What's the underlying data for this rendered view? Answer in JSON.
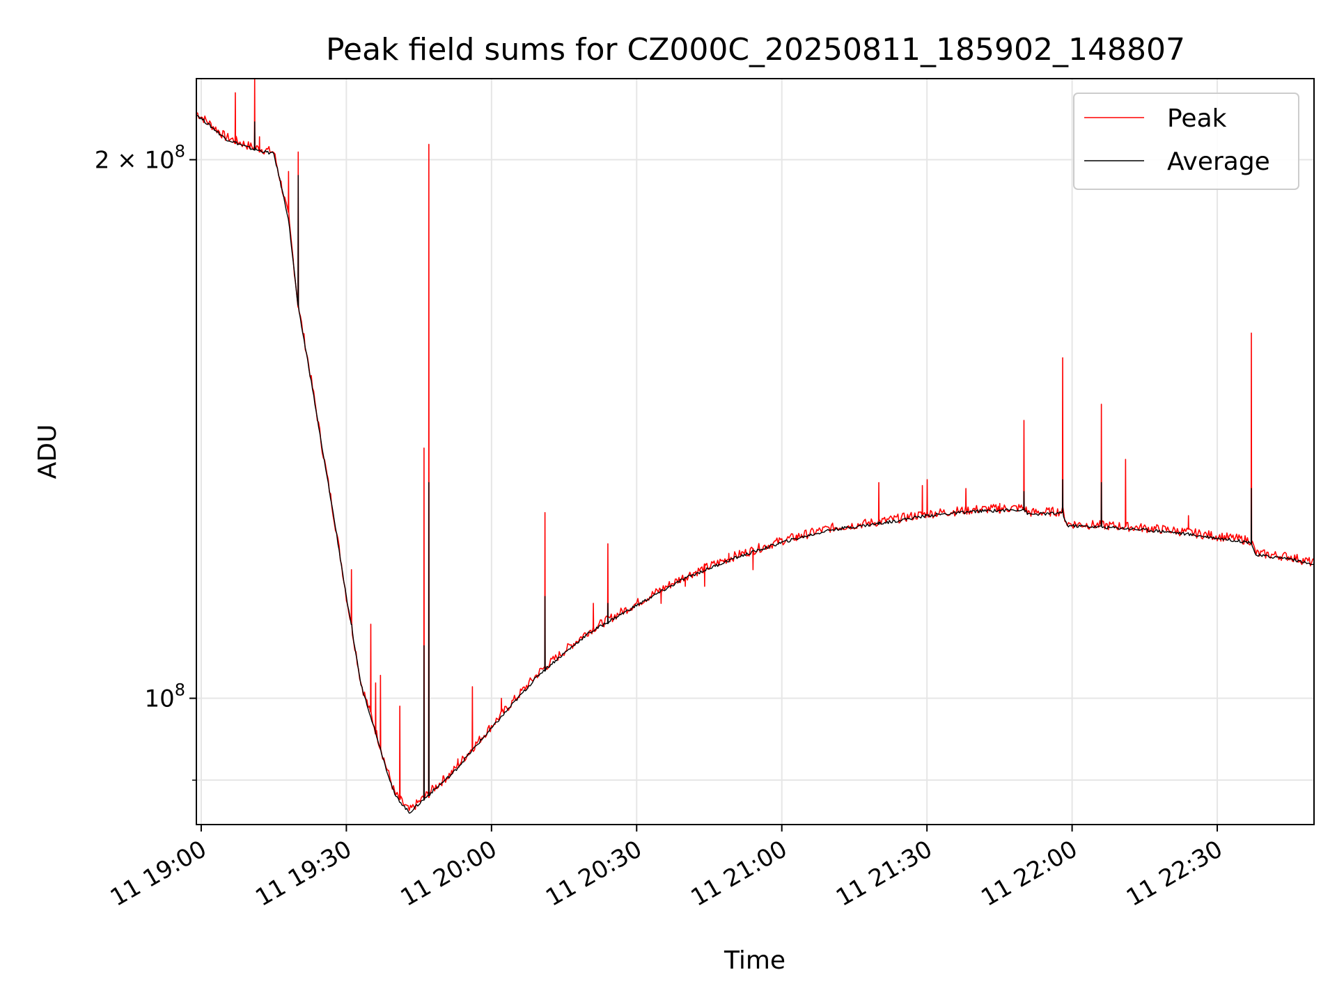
{
  "chart_data": {
    "type": "line",
    "title": "Peak field sums for CZ000C_20250811_185902_148807",
    "xlabel": "Time",
    "ylabel": "ADU",
    "yscale": "log",
    "ylim": [
      85000000,
      222000000
    ],
    "xlim": [
      "11 18:59",
      "11 22:50"
    ],
    "grid": true,
    "legend_position": "top-right",
    "x_ticks": [
      "11 19:00",
      "11 19:30",
      "11 20:00",
      "11 20:30",
      "11 21:00",
      "11 21:30",
      "11 22:00",
      "11 22:30"
    ],
    "y_ticks": [
      {
        "label_base": "2 × 10",
        "label_exp": "8",
        "value": 200000000
      },
      {
        "label_base": "10",
        "label_exp": "8",
        "value": 100000000
      }
    ],
    "y_minor_ticks": [
      90000000
    ],
    "series": [
      {
        "name": "Peak",
        "color": "#ff0000",
        "baseline": [
          [
            "11 18:59",
            212500000
          ],
          [
            "11 19:05",
            206000000
          ],
          [
            "11 19:10",
            203500000
          ],
          [
            "11 19:15",
            202000000
          ],
          [
            "11 19:18",
            186000000
          ],
          [
            "11 19:20",
            166000000
          ],
          [
            "11 19:25",
            138000000
          ],
          [
            "11 19:30",
            114000000
          ],
          [
            "11 19:33",
            102000000
          ],
          [
            "11 19:36",
            96000000
          ],
          [
            "11 19:38",
            92000000
          ],
          [
            "11 19:40",
            88500000
          ],
          [
            "11 19:43",
            86500000
          ],
          [
            "11 19:46",
            88000000
          ],
          [
            "11 19:48",
            89000000
          ],
          [
            "11 19:52",
            91000000
          ],
          [
            "11 20:00",
            96500000
          ],
          [
            "11 20:10",
            103500000
          ],
          [
            "11 20:20",
            109000000
          ],
          [
            "11 20:30",
            113000000
          ],
          [
            "11 20:40",
            117000000
          ],
          [
            "11 20:50",
            120000000
          ],
          [
            "11 21:00",
            122500000
          ],
          [
            "11 21:10",
            124500000
          ],
          [
            "11 21:20",
            125500000
          ],
          [
            "11 21:30",
            126800000
          ],
          [
            "11 21:40",
            127500000
          ],
          [
            "11 21:50",
            127800000
          ],
          [
            "11 21:51",
            127000000
          ],
          [
            "11 21:58",
            127200000
          ],
          [
            "11 21:59",
            125200000
          ],
          [
            "11 22:10",
            124800000
          ],
          [
            "11 22:20",
            124200000
          ],
          [
            "11 22:30",
            123200000
          ],
          [
            "11 22:37",
            122500000
          ],
          [
            "11 22:38",
            120500000
          ],
          [
            "11 22:45",
            120000000
          ],
          [
            "11 22:50",
            119000000
          ]
        ],
        "spikes": [
          [
            "11 19:07",
            218000000
          ],
          [
            "11 19:11",
            222000000
          ],
          [
            "11 19:12",
            206000000
          ],
          [
            "11 19:18",
            197000000
          ],
          [
            "11 19:20",
            202000000
          ],
          [
            "11 19:31",
            118000000
          ],
          [
            "11 19:35",
            110000000
          ],
          [
            "11 19:36",
            102000000
          ],
          [
            "11 19:37",
            103000000
          ],
          [
            "11 19:41",
            99000000
          ],
          [
            "11 19:46",
            138000000
          ],
          [
            "11 19:47",
            204000000
          ],
          [
            "11 19:50",
            90500000
          ],
          [
            "11 19:53",
            92500000
          ],
          [
            "11 19:56",
            101500000
          ],
          [
            "11 20:02",
            100000000
          ],
          [
            "11 20:11",
            127000000
          ],
          [
            "11 20:21",
            113000000
          ],
          [
            "11 20:24",
            122000000
          ],
          [
            "11 20:35",
            113000000
          ],
          [
            "11 20:40",
            115500000
          ],
          [
            "11 20:44",
            115500000
          ],
          [
            "11 20:49",
            120500000
          ],
          [
            "11 20:54",
            118000000
          ],
          [
            "11 21:03",
            122500000
          ],
          [
            "11 21:04",
            123500000
          ],
          [
            "11 21:20",
            132000000
          ],
          [
            "11 21:29",
            131500000
          ],
          [
            "11 21:30",
            132500000
          ],
          [
            "11 21:38",
            131000000
          ],
          [
            "11 21:45",
            128500000
          ],
          [
            "11 21:50",
            143000000
          ],
          [
            "11 21:58",
            155000000
          ],
          [
            "11 22:06",
            146000000
          ],
          [
            "11 22:11",
            136000000
          ],
          [
            "11 22:24",
            126500000
          ],
          [
            "11 22:37",
            160000000
          ]
        ]
      },
      {
        "name": "Average",
        "color": "#000000",
        "baseline": [
          [
            "11 18:59",
            212000000
          ],
          [
            "11 19:05",
            205500000
          ],
          [
            "11 19:10",
            203000000
          ],
          [
            "11 19:15",
            201500000
          ],
          [
            "11 19:18",
            185500000
          ],
          [
            "11 19:20",
            165500000
          ],
          [
            "11 19:25",
            137800000
          ],
          [
            "11 19:30",
            113800000
          ],
          [
            "11 19:33",
            101800000
          ],
          [
            "11 19:36",
            95800000
          ],
          [
            "11 19:38",
            91800000
          ],
          [
            "11 19:40",
            88300000
          ],
          [
            "11 19:43",
            86300000
          ],
          [
            "11 19:46",
            87800000
          ],
          [
            "11 19:48",
            88800000
          ],
          [
            "11 19:52",
            90800000
          ],
          [
            "11 20:00",
            96200000
          ],
          [
            "11 20:10",
            103200000
          ],
          [
            "11 20:20",
            108700000
          ],
          [
            "11 20:30",
            112700000
          ],
          [
            "11 20:40",
            116700000
          ],
          [
            "11 20:50",
            119700000
          ],
          [
            "11 21:00",
            122200000
          ],
          [
            "11 21:10",
            124200000
          ],
          [
            "11 21:20",
            125200000
          ],
          [
            "11 21:30",
            126500000
          ],
          [
            "11 21:40",
            127200000
          ],
          [
            "11 21:50",
            127500000
          ],
          [
            "11 21:51",
            126700000
          ],
          [
            "11 21:58",
            126900000
          ],
          [
            "11 21:59",
            124900000
          ],
          [
            "11 22:10",
            124500000
          ],
          [
            "11 22:20",
            123900000
          ],
          [
            "11 22:30",
            122900000
          ],
          [
            "11 22:37",
            122200000
          ],
          [
            "11 22:38",
            120200000
          ],
          [
            "11 22:45",
            119700000
          ],
          [
            "11 22:50",
            118700000
          ]
        ],
        "spikes": [
          [
            "11 19:11",
            210000000
          ],
          [
            "11 19:20",
            196000000
          ],
          [
            "11 19:31",
            110000000
          ],
          [
            "11 19:46",
            107000000
          ],
          [
            "11 19:47",
            132000000
          ],
          [
            "11 20:11",
            114000000
          ],
          [
            "11 20:24",
            113000000
          ],
          [
            "11 21:20",
            125500000
          ],
          [
            "11 21:50",
            130500000
          ],
          [
            "11 21:58",
            132500000
          ],
          [
            "11 22:06",
            132000000
          ],
          [
            "11 22:37",
            131000000
          ]
        ]
      }
    ]
  }
}
